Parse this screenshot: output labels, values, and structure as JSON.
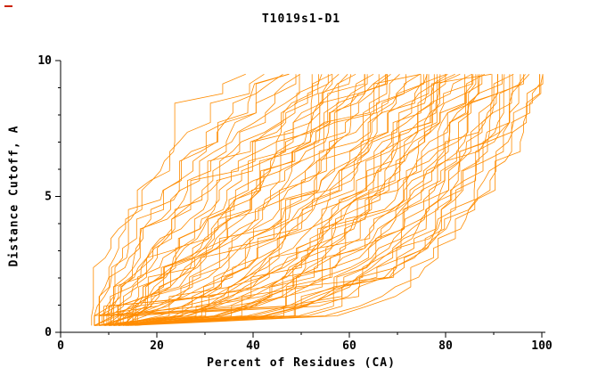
{
  "page": {
    "background": "#ffffff",
    "stray_mark_color": "#cc2200"
  },
  "chart_data": {
    "type": "line",
    "title": "T1019s1-D1",
    "xlabel": "Percent of Residues (CA)",
    "ylabel": "Distance Cutoff, A",
    "xlim": [
      0,
      100
    ],
    "ylim": [
      0,
      10
    ],
    "x_tick_labels": [
      "0",
      "20",
      "40",
      "60",
      "80",
      "100"
    ],
    "x_ticks_major": [
      0,
      20,
      40,
      60,
      80,
      100
    ],
    "x_ticks_minor_step": 10,
    "y_tick_labels": [
      "0",
      "5",
      "10"
    ],
    "y_ticks_major": [
      0,
      5,
      10
    ],
    "y_ticks_minor_step": 1,
    "grid": false,
    "legend": "none",
    "line_color": "#ff8c00",
    "axis_color": "#000000",
    "curve_top_cutoff": 9.5,
    "curve_bottom_cutoff": 0.25,
    "series_format": [
      "percent_at_0A",
      "percent_at_9.5A",
      "shape_exponent"
    ],
    "series": [
      [
        8,
        40,
        1.8
      ],
      [
        10,
        43,
        1.6
      ],
      [
        7,
        45,
        1.5
      ],
      [
        12,
        47,
        1.7
      ],
      [
        9,
        49,
        1.4
      ],
      [
        11,
        50,
        1.2
      ],
      [
        8,
        52,
        1.5
      ],
      [
        13,
        53,
        1.0
      ],
      [
        10,
        55,
        1.3
      ],
      [
        7,
        56,
        1.1
      ],
      [
        14,
        57,
        0.9
      ],
      [
        9,
        58,
        1.2
      ],
      [
        12,
        59,
        0.8
      ],
      [
        8,
        60,
        1.0
      ],
      [
        15,
        61,
        0.7
      ],
      [
        10,
        62,
        1.1
      ],
      [
        13,
        63,
        0.9
      ],
      [
        7,
        64,
        0.8
      ],
      [
        11,
        65,
        1.0
      ],
      [
        16,
        66,
        0.6
      ],
      [
        9,
        67,
        0.9
      ],
      [
        12,
        68,
        0.7
      ],
      [
        8,
        69,
        0.8
      ],
      [
        14,
        70,
        0.6
      ],
      [
        10,
        71,
        0.9
      ],
      [
        13,
        72,
        0.5
      ],
      [
        7,
        73,
        0.8
      ],
      [
        15,
        74,
        0.6
      ],
      [
        9,
        75,
        0.7
      ],
      [
        12,
        76,
        0.5
      ],
      [
        8,
        77,
        0.7
      ],
      [
        16,
        78,
        0.45
      ],
      [
        10,
        79,
        0.6
      ],
      [
        13,
        80,
        0.5
      ],
      [
        7,
        81,
        0.65
      ],
      [
        14,
        82,
        0.4
      ],
      [
        9,
        83,
        0.55
      ],
      [
        12,
        84,
        0.45
      ],
      [
        8,
        85,
        0.5
      ],
      [
        15,
        86,
        0.35
      ],
      [
        10,
        87,
        0.5
      ],
      [
        13,
        88,
        0.4
      ],
      [
        7,
        89,
        0.45
      ],
      [
        11,
        90,
        0.35
      ],
      [
        9,
        91,
        0.4
      ],
      [
        14,
        92,
        0.3
      ],
      [
        8,
        93,
        0.38
      ],
      [
        12,
        94,
        0.3
      ],
      [
        10,
        95,
        0.33
      ],
      [
        13,
        96,
        0.27
      ],
      [
        7,
        97,
        0.3
      ],
      [
        11,
        98,
        0.25
      ],
      [
        9,
        99,
        0.27
      ],
      [
        12,
        100,
        0.22
      ],
      [
        8,
        100,
        0.25
      ],
      [
        14,
        98,
        0.2
      ],
      [
        10,
        96,
        0.24
      ],
      [
        7,
        94,
        0.27
      ],
      [
        13,
        92,
        0.22
      ],
      [
        9,
        90,
        0.3
      ],
      [
        11,
        88,
        0.26
      ],
      [
        8,
        86,
        0.33
      ],
      [
        15,
        84,
        0.3
      ],
      [
        10,
        82,
        0.38
      ],
      [
        12,
        80,
        0.35
      ],
      [
        7,
        78,
        0.42
      ],
      [
        13,
        76,
        0.4
      ],
      [
        9,
        74,
        0.5
      ],
      [
        11,
        70,
        0.55
      ],
      [
        8,
        66,
        0.7
      ],
      [
        12,
        58,
        0.95
      ],
      [
        6,
        44,
        2.0
      ]
    ]
  }
}
